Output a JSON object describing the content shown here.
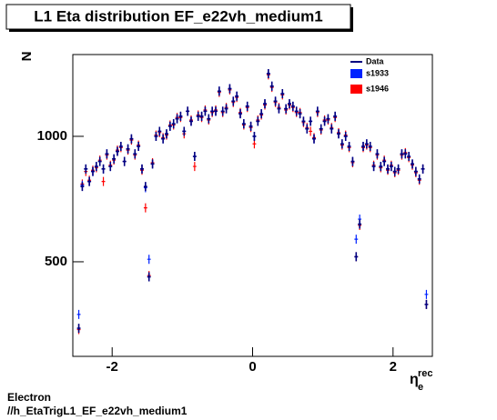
{
  "chart_data": {
    "type": "errorpoints",
    "title": "L1 Eta distribution EF_e22vh_medium1",
    "y_label": "N",
    "x_label": "η",
    "x_label_sub": "e",
    "x_label_sup": "rec",
    "footer": [
      "Electron",
      "//h_EtaTrigL1_EF_e22vh_medium1"
    ],
    "xlim": [
      -2.56,
      2.56
    ],
    "ylim": [
      123,
      1326
    ],
    "xticks": [
      -2,
      0,
      2
    ],
    "yticks": [
      500,
      1000
    ],
    "x": [
      -2.475,
      -2.425,
      -2.375,
      -2.325,
      -2.275,
      -2.225,
      -2.175,
      -2.125,
      -2.075,
      -2.025,
      -1.975,
      -1.925,
      -1.875,
      -1.825,
      -1.775,
      -1.725,
      -1.675,
      -1.625,
      -1.575,
      -1.525,
      -1.475,
      -1.425,
      -1.375,
      -1.325,
      -1.275,
      -1.225,
      -1.175,
      -1.125,
      -1.075,
      -1.025,
      -0.975,
      -0.925,
      -0.875,
      -0.825,
      -0.775,
      -0.725,
      -0.675,
      -0.625,
      -0.575,
      -0.525,
      -0.475,
      -0.425,
      -0.375,
      -0.325,
      -0.275,
      -0.225,
      -0.175,
      -0.125,
      -0.075,
      -0.025,
      0.025,
      0.075,
      0.125,
      0.175,
      0.225,
      0.275,
      0.325,
      0.375,
      0.425,
      0.475,
      0.525,
      0.575,
      0.625,
      0.675,
      0.725,
      0.775,
      0.825,
      0.875,
      0.925,
      0.975,
      1.025,
      1.075,
      1.125,
      1.175,
      1.225,
      1.275,
      1.325,
      1.375,
      1.425,
      1.475,
      1.525,
      1.575,
      1.625,
      1.675,
      1.725,
      1.775,
      1.825,
      1.875,
      1.925,
      1.975,
      2.025,
      2.075,
      2.125,
      2.175,
      2.225,
      2.275,
      2.325,
      2.375,
      2.425,
      2.475
    ],
    "series": [
      {
        "name": "s1946",
        "color": "#ff0000",
        "values": [
          230,
          810,
          860,
          825,
          865,
          875,
          905,
          820,
          925,
          885,
          905,
          945,
          955,
          900,
          945,
          985,
          925,
          965,
          865,
          715,
          445,
          895,
          1005,
          1015,
          995,
          1005,
          1045,
          1045,
          1075,
          1075,
          1010,
          1100,
          1065,
          880,
          1085,
          1075,
          1105,
          1065,
          1095,
          1105,
          1175,
          1095,
          1115,
          1185,
          1135,
          1155,
          1095,
          1045,
          1115,
          1035,
          970,
          1065,
          1085,
          1125,
          1245,
          1195,
          1135,
          1115,
          1165,
          1105,
          1125,
          1115,
          1095,
          1095,
          1055,
          1035,
          1020,
          995,
          1095,
          1025,
          1065,
          1065,
          1035,
          1075,
          1015,
          965,
          1005,
          955,
          895,
          520,
          645,
          955,
          965,
          955,
          885,
          925,
          875,
          905,
          865,
          885,
          855,
          865,
          925,
          935,
          915,
          885,
          855,
          825,
          870,
          330
        ]
      },
      {
        "name": "s1933",
        "color": "#0022ff",
        "values": [
          290,
          805,
          870,
          820,
          860,
          880,
          900,
          870,
          930,
          880,
          910,
          940,
          960,
          900,
          950,
          990,
          930,
          960,
          870,
          795,
          510,
          890,
          1000,
          1020,
          990,
          1010,
          1040,
          1050,
          1070,
          1080,
          1020,
          1100,
          1060,
          920,
          1080,
          1080,
          1100,
          1070,
          1100,
          1100,
          1180,
          1100,
          1110,
          1190,
          1140,
          1160,
          1090,
          1050,
          1120,
          1040,
          1000,
          1060,
          1090,
          1130,
          1250,
          1200,
          1140,
          1110,
          1170,
          1110,
          1130,
          1120,
          1100,
          1090,
          1060,
          1030,
          1060,
          990,
          1100,
          1030,
          1060,
          1070,
          1030,
          1080,
          1010,
          970,
          1000,
          960,
          900,
          590,
          670,
          960,
          970,
          960,
          880,
          930,
          880,
          900,
          870,
          880,
          860,
          870,
          930,
          930,
          920,
          890,
          860,
          830,
          870,
          370
        ]
      },
      {
        "name": "Data",
        "color": "#000080",
        "values": [
          235,
          800,
          870,
          820,
          860,
          880,
          900,
          870,
          930,
          880,
          910,
          940,
          960,
          900,
          950,
          990,
          930,
          960,
          870,
          800,
          440,
          890,
          1000,
          1020,
          990,
          1010,
          1040,
          1050,
          1070,
          1080,
          1020,
          1100,
          1060,
          920,
          1080,
          1080,
          1100,
          1070,
          1100,
          1100,
          1180,
          1100,
          1110,
          1190,
          1140,
          1160,
          1090,
          1050,
          1120,
          1040,
          1000,
          1060,
          1090,
          1130,
          1250,
          1200,
          1140,
          1110,
          1170,
          1110,
          1130,
          1120,
          1100,
          1090,
          1060,
          1030,
          1060,
          990,
          1100,
          1030,
          1060,
          1070,
          1030,
          1080,
          1010,
          970,
          1000,
          960,
          900,
          520,
          650,
          960,
          970,
          960,
          880,
          930,
          880,
          900,
          870,
          880,
          860,
          870,
          930,
          930,
          920,
          890,
          860,
          830,
          870,
          330
        ]
      }
    ]
  }
}
